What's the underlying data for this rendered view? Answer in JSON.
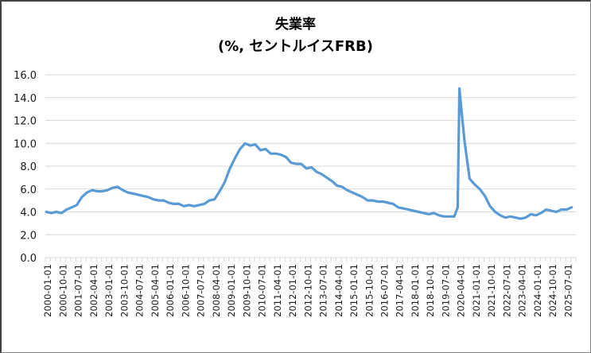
{
  "title": {
    "line1": "失業率",
    "line2": "(%, セントルイスFRB)"
  },
  "colors": {
    "line": "#5b9bd5",
    "grid": "#d9d9d9",
    "text": "#1a1a1a"
  },
  "chart_data": {
    "type": "line",
    "title": "失業率 (%, セントルイスFRB)",
    "xlabel": "",
    "ylabel": "",
    "ylim": [
      0,
      16
    ],
    "yticks": [
      "0.0",
      "2.0",
      "4.0",
      "6.0",
      "8.0",
      "10.0",
      "12.0",
      "14.0",
      "16.0"
    ],
    "grid": true,
    "legend": "none",
    "xtick_labels": [
      "2000-01-01",
      "2000-10-01",
      "2001-07-01",
      "2002-04-01",
      "2003-01-01",
      "2003-10-01",
      "2004-07-01",
      "2005-04-01",
      "2006-01-01",
      "2006-10-01",
      "2007-07-01",
      "2008-04-01",
      "2009-01-01",
      "2009-10-01",
      "2010-07-01",
      "2011-04-01",
      "2012-01-01",
      "2012-10-01",
      "2013-07-01",
      "2014-04-01",
      "2015-01-01",
      "2015-10-01",
      "2016-07-01",
      "2017-04-01",
      "2018-01-01",
      "2018-10-01",
      "2019-07-01",
      "2020-04-01",
      "2021-01-01",
      "2021-10-01",
      "2022-07-01",
      "2023-04-01",
      "2024-01-01",
      "2024-10-01",
      "2025-07-01"
    ],
    "x_start": "2000-01-01",
    "x_step": "quarter",
    "series": [
      {
        "name": "失業率",
        "x": [
          "2000-01",
          "2000-04",
          "2000-07",
          "2000-10",
          "2001-01",
          "2001-04",
          "2001-07",
          "2001-10",
          "2002-01",
          "2002-04",
          "2002-07",
          "2002-10",
          "2003-01",
          "2003-04",
          "2003-07",
          "2003-10",
          "2004-01",
          "2004-04",
          "2004-07",
          "2004-10",
          "2005-01",
          "2005-04",
          "2005-07",
          "2005-10",
          "2006-01",
          "2006-04",
          "2006-07",
          "2006-10",
          "2007-01",
          "2007-04",
          "2007-07",
          "2007-10",
          "2008-01",
          "2008-04",
          "2008-07",
          "2008-10",
          "2009-01",
          "2009-04",
          "2009-07",
          "2009-10",
          "2010-01",
          "2010-04",
          "2010-07",
          "2010-10",
          "2011-01",
          "2011-04",
          "2011-07",
          "2011-10",
          "2012-01",
          "2012-04",
          "2012-07",
          "2012-10",
          "2013-01",
          "2013-04",
          "2013-07",
          "2013-10",
          "2014-01",
          "2014-04",
          "2014-07",
          "2014-10",
          "2015-01",
          "2015-04",
          "2015-07",
          "2015-10",
          "2016-01",
          "2016-04",
          "2016-07",
          "2016-10",
          "2017-01",
          "2017-04",
          "2017-07",
          "2017-10",
          "2018-01",
          "2018-04",
          "2018-07",
          "2018-10",
          "2019-01",
          "2019-04",
          "2019-07",
          "2019-10",
          "2020-01",
          "2020-03",
          "2020-04",
          "2020-05",
          "2020-07",
          "2020-10",
          "2021-01",
          "2021-04",
          "2021-07",
          "2021-10",
          "2022-01",
          "2022-04",
          "2022-07",
          "2022-10",
          "2023-01",
          "2023-04",
          "2023-07",
          "2023-10",
          "2024-01",
          "2024-04",
          "2024-07",
          "2024-10",
          "2025-01",
          "2025-04",
          "2025-07",
          "2025-10"
        ],
        "values": [
          4.0,
          3.9,
          4.0,
          3.9,
          4.2,
          4.4,
          4.6,
          5.3,
          5.7,
          5.9,
          5.8,
          5.8,
          5.9,
          6.1,
          6.2,
          5.9,
          5.7,
          5.6,
          5.5,
          5.4,
          5.3,
          5.1,
          5.0,
          5.0,
          4.8,
          4.7,
          4.7,
          4.5,
          4.6,
          4.5,
          4.6,
          4.7,
          5.0,
          5.1,
          5.8,
          6.6,
          7.8,
          8.7,
          9.5,
          10.0,
          9.8,
          9.9,
          9.4,
          9.5,
          9.1,
          9.1,
          9.0,
          8.8,
          8.3,
          8.2,
          8.2,
          7.8,
          7.9,
          7.5,
          7.3,
          7.0,
          6.7,
          6.3,
          6.2,
          5.9,
          5.7,
          5.5,
          5.3,
          5.0,
          5.0,
          4.9,
          4.9,
          4.8,
          4.7,
          4.4,
          4.3,
          4.2,
          4.1,
          4.0,
          3.9,
          3.8,
          3.9,
          3.7,
          3.6,
          3.6,
          3.6,
          4.4,
          14.8,
          13.2,
          10.2,
          6.9,
          6.4,
          6.0,
          5.4,
          4.5,
          4.0,
          3.7,
          3.5,
          3.6,
          3.5,
          3.4,
          3.5,
          3.8,
          3.7,
          3.9,
          4.2,
          4.1,
          4.0,
          4.2,
          4.2,
          4.4
        ]
      }
    ]
  }
}
